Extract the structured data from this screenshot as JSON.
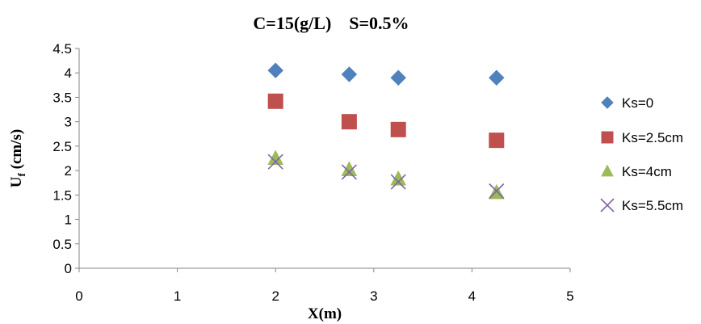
{
  "chart_data": {
    "type": "scatter",
    "title": "C=15(g/L)    S=0.5%",
    "xlabel": "X(m)",
    "ylabel_main": "U",
    "ylabel_sub": "f",
    "ylabel_tail": " (cm/s)",
    "xlim": [
      0,
      5
    ],
    "ylim": [
      0,
      4.5
    ],
    "xticks": [
      "0",
      "1",
      "2",
      "3",
      "4",
      "5"
    ],
    "yticks": [
      "0",
      "0.5",
      "1",
      "1.5",
      "2",
      "2.5",
      "3",
      "3.5",
      "4",
      "4.5"
    ],
    "grid": false,
    "legend_position": "right",
    "series": [
      {
        "name": "Ks=0",
        "marker": "diamond",
        "color": "#4F81BD",
        "points": [
          [
            2,
            4.05
          ],
          [
            2.75,
            3.97
          ],
          [
            3.25,
            3.9
          ],
          [
            4.25,
            3.9
          ]
        ]
      },
      {
        "name": "Ks=2.5cm",
        "marker": "square",
        "color": "#C0504D",
        "points": [
          [
            2,
            3.42
          ],
          [
            2.75,
            3.0
          ],
          [
            3.25,
            2.84
          ],
          [
            4.25,
            2.62
          ]
        ]
      },
      {
        "name": "Ks=4cm",
        "marker": "triangle",
        "color": "#9BBB59",
        "points": [
          [
            2,
            2.25
          ],
          [
            2.75,
            2.02
          ],
          [
            3.25,
            1.83
          ],
          [
            4.25,
            1.55
          ]
        ]
      },
      {
        "name": "Ks=5.5cm",
        "marker": "x",
        "color": "#8064A2",
        "points": [
          [
            2,
            2.18
          ],
          [
            2.75,
            1.97
          ],
          [
            3.25,
            1.77
          ],
          [
            4.25,
            1.58
          ]
        ]
      }
    ]
  }
}
